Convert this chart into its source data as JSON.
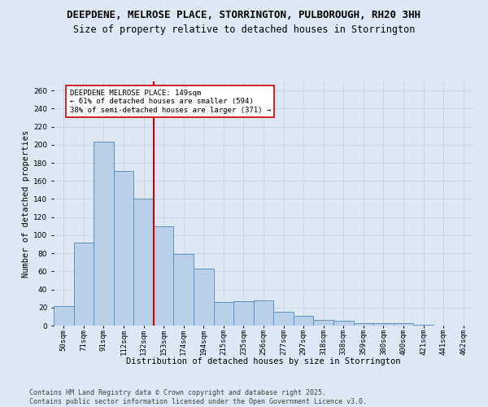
{
  "title_line1": "DEEPDENE, MELROSE PLACE, STORRINGTON, PULBOROUGH, RH20 3HH",
  "title_line2": "Size of property relative to detached houses in Storrington",
  "xlabel": "Distribution of detached houses by size in Storrington",
  "ylabel": "Number of detached properties",
  "categories": [
    "50sqm",
    "71sqm",
    "91sqm",
    "112sqm",
    "132sqm",
    "153sqm",
    "174sqm",
    "194sqm",
    "215sqm",
    "235sqm",
    "256sqm",
    "277sqm",
    "297sqm",
    "318sqm",
    "338sqm",
    "359sqm",
    "380sqm",
    "400sqm",
    "421sqm",
    "441sqm",
    "462sqm"
  ],
  "values": [
    22,
    92,
    203,
    171,
    140,
    110,
    79,
    63,
    26,
    27,
    28,
    15,
    11,
    6,
    5,
    3,
    3,
    3,
    1,
    0,
    0
  ],
  "bar_color": "#b8d0e8",
  "bar_edge_color": "#6090c0",
  "vline_color": "#cc0000",
  "vline_pos": 4.5,
  "annotation_text": "DEEPDENE MELROSE PLACE: 149sqm\n← 61% of detached houses are smaller (594)\n38% of semi-detached houses are larger (371) →",
  "annotation_box_color": "#ffffff",
  "annotation_box_edge": "#cc0000",
  "ylim": [
    0,
    270
  ],
  "yticks": [
    0,
    20,
    40,
    60,
    80,
    100,
    120,
    140,
    160,
    180,
    200,
    220,
    240,
    260
  ],
  "grid_color": "#c8d8e8",
  "background_color": "#dce9f5",
  "footer_line1": "Contains HM Land Registry data © Crown copyright and database right 2025.",
  "footer_line2": "Contains public sector information licensed under the Open Government Licence v3.0.",
  "title_fontsize": 9,
  "subtitle_fontsize": 8.5,
  "axis_label_fontsize": 7.5,
  "tick_fontsize": 6.5,
  "annotation_fontsize": 6.5,
  "footer_fontsize": 6
}
